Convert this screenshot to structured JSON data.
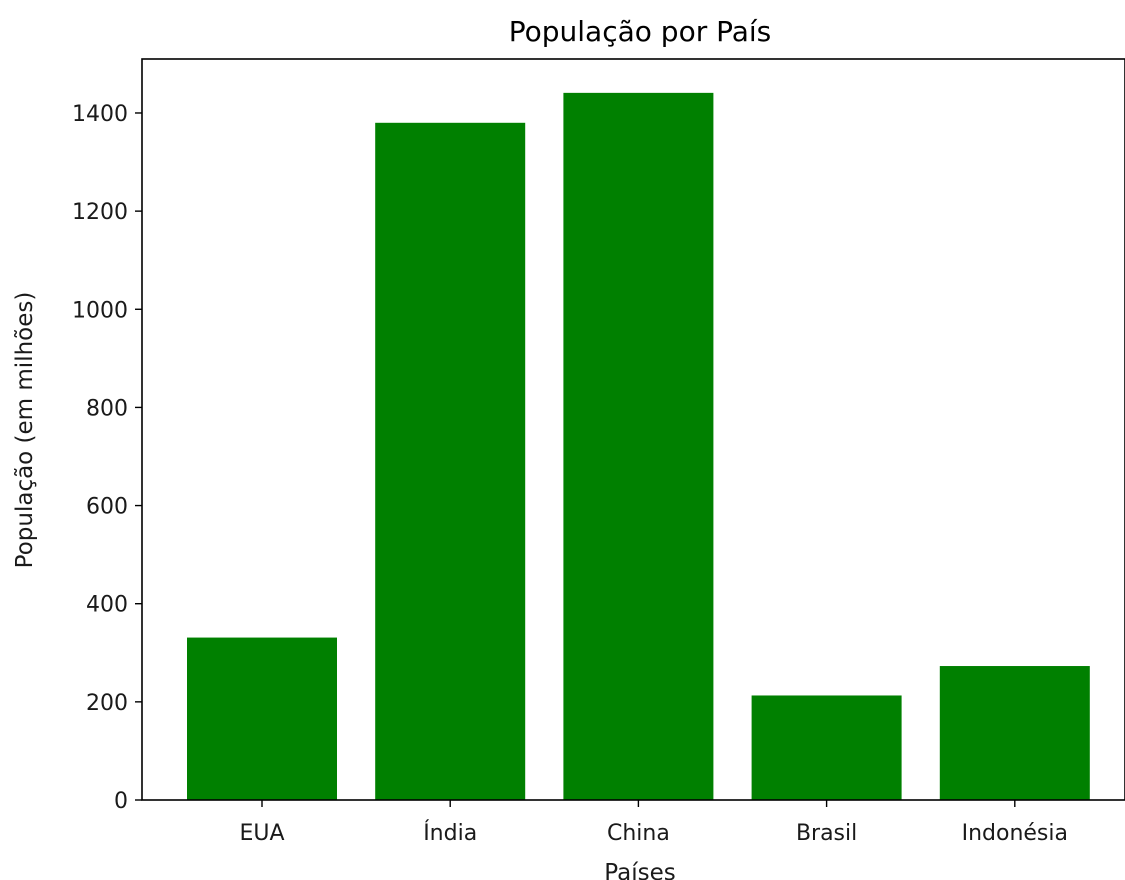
{
  "chart_data": {
    "type": "bar",
    "title": "População por País",
    "xlabel": "Países",
    "ylabel": "População (em milhões)",
    "categories": [
      "EUA",
      "Índia",
      "China",
      "Brasil",
      "Indonésia"
    ],
    "values": [
      331,
      1380,
      1441,
      213,
      273
    ],
    "bar_color": "#008000",
    "ylim": [
      0,
      1510
    ],
    "yticks": [
      0,
      200,
      400,
      600,
      800,
      1000,
      1200,
      1400
    ],
    "grid": false,
    "legend": "none"
  }
}
